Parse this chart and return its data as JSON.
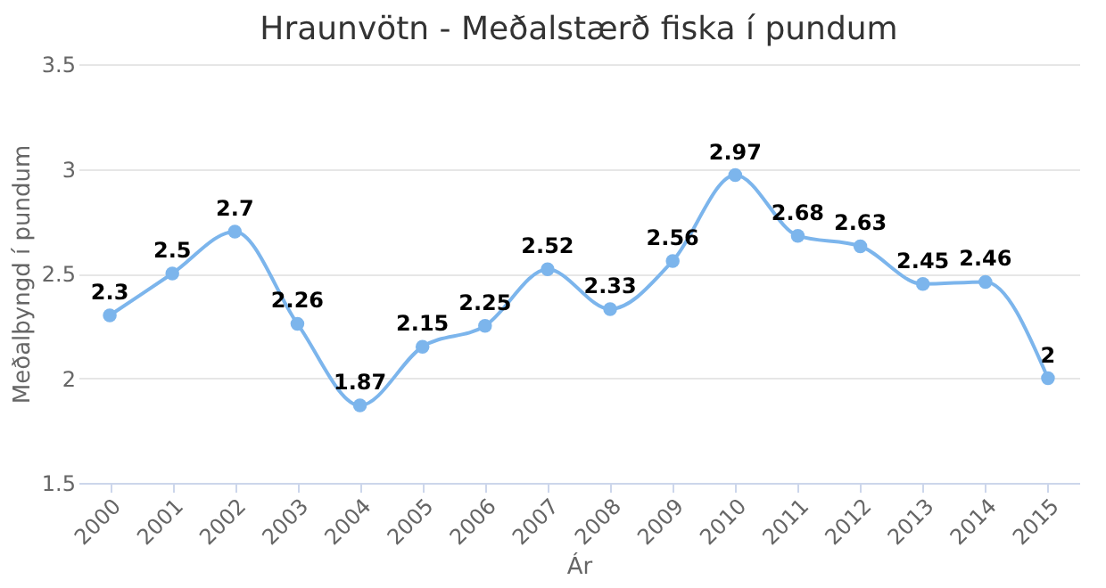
{
  "chart_data": {
    "type": "line",
    "title": "Hraunvötn - Meðalstærð fiska í pundum",
    "xlabel": "Ár",
    "ylabel": "Meðalþyngd í pundum",
    "categories": [
      "2000",
      "2001",
      "2002",
      "2003",
      "2004",
      "2005",
      "2006",
      "2007",
      "2008",
      "2009",
      "2010",
      "2011",
      "2012",
      "2013",
      "2014",
      "2015"
    ],
    "series": [
      {
        "color": "#7cb5ec",
        "values": [
          2.3,
          2.5,
          2.7,
          2.26,
          1.87,
          2.15,
          2.25,
          2.52,
          2.33,
          2.56,
          2.97,
          2.68,
          2.63,
          2.45,
          2.46,
          2
        ]
      }
    ],
    "ylim": [
      1.5,
      3.5
    ],
    "yticks": [
      1.5,
      2,
      2.5,
      3,
      3.5
    ],
    "grid": "y",
    "marker": "circle",
    "data_labels": true
  }
}
